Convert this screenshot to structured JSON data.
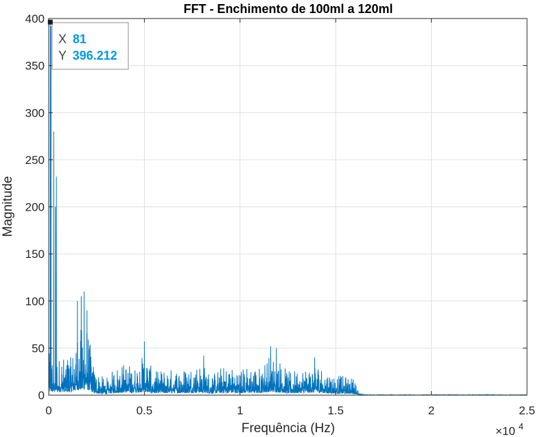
{
  "chart_data": {
    "type": "line",
    "title": "FFT - Enchimento de 100ml a 120ml",
    "xlabel": "Frequência (Hz)",
    "ylabel": "Magnitude",
    "xlim": [
      0,
      25000
    ],
    "ylim": [
      0,
      400
    ],
    "x_ticks": [
      0,
      5000,
      10000,
      15000,
      20000,
      25000
    ],
    "x_tick_labels": [
      "0",
      "0.5",
      "1",
      "1.5",
      "2",
      "2.5"
    ],
    "y_ticks": [
      0,
      50,
      100,
      150,
      200,
      250,
      300,
      350,
      400
    ],
    "x_exponent_label": "×10",
    "x_exponent_power": "4",
    "grid": true,
    "series_color": "#0072BD",
    "peaks": [
      {
        "x": 81,
        "y": 396.212
      },
      {
        "x": 120,
        "y": 392
      },
      {
        "x": 260,
        "y": 280
      },
      {
        "x": 350,
        "y": 200
      },
      {
        "x": 400,
        "y": 232
      },
      {
        "x": 1500,
        "y": 100
      },
      {
        "x": 1700,
        "y": 105
      },
      {
        "x": 1850,
        "y": 110
      },
      {
        "x": 2000,
        "y": 90
      },
      {
        "x": 5000,
        "y": 57
      },
      {
        "x": 8100,
        "y": 42
      },
      {
        "x": 11600,
        "y": 52
      },
      {
        "x": 11900,
        "y": 50
      },
      {
        "x": 13900,
        "y": 40
      }
    ],
    "envelope": [
      {
        "x": 0,
        "y": 45
      },
      {
        "x": 500,
        "y": 40
      },
      {
        "x": 1000,
        "y": 42
      },
      {
        "x": 1200,
        "y": 40
      },
      {
        "x": 1500,
        "y": 70
      },
      {
        "x": 2000,
        "y": 75
      },
      {
        "x": 2400,
        "y": 25
      },
      {
        "x": 3000,
        "y": 18
      },
      {
        "x": 3500,
        "y": 30
      },
      {
        "x": 4000,
        "y": 35
      },
      {
        "x": 4500,
        "y": 30
      },
      {
        "x": 5000,
        "y": 45
      },
      {
        "x": 5500,
        "y": 25
      },
      {
        "x": 6000,
        "y": 28
      },
      {
        "x": 7000,
        "y": 28
      },
      {
        "x": 8000,
        "y": 35
      },
      {
        "x": 8500,
        "y": 22
      },
      {
        "x": 9000,
        "y": 30
      },
      {
        "x": 9500,
        "y": 30
      },
      {
        "x": 10000,
        "y": 28
      },
      {
        "x": 10500,
        "y": 32
      },
      {
        "x": 11000,
        "y": 30
      },
      {
        "x": 11500,
        "y": 42
      },
      {
        "x": 12000,
        "y": 40
      },
      {
        "x": 12500,
        "y": 25
      },
      {
        "x": 13000,
        "y": 28
      },
      {
        "x": 13500,
        "y": 30
      },
      {
        "x": 14000,
        "y": 35
      },
      {
        "x": 14500,
        "y": 25
      },
      {
        "x": 15000,
        "y": 22
      },
      {
        "x": 15500,
        "y": 20
      },
      {
        "x": 16000,
        "y": 18
      },
      {
        "x": 16200,
        "y": 3
      },
      {
        "x": 16500,
        "y": 0.5
      },
      {
        "x": 25000,
        "y": 0.5
      }
    ],
    "datatip": {
      "x_label": "X",
      "x_value": "81",
      "y_label": "Y",
      "y_value": "396.212",
      "value_color": "#0099E6"
    }
  }
}
